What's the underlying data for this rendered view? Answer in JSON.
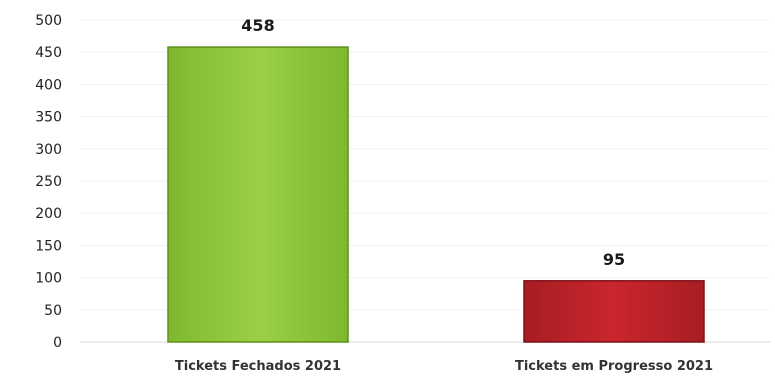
{
  "chart_data": {
    "type": "bar",
    "title": "",
    "xlabel": "",
    "ylabel": "",
    "categories": [
      "Tickets Fechados 2021",
      "Tickets em Progresso 2021"
    ],
    "values": [
      458,
      95
    ],
    "data_labels": [
      "458",
      "95"
    ],
    "bar_colors": [
      "#8dc63f",
      "#c0272d"
    ],
    "bar_edge_colors": [
      "#5e8f1c",
      "#7d1116"
    ],
    "ylim": [
      0,
      500
    ],
    "yticks": [
      0,
      50,
      100,
      150,
      200,
      250,
      300,
      350,
      400,
      450,
      500
    ],
    "ytick_labels": [
      "0",
      "50",
      "100",
      "150",
      "200",
      "250",
      "300",
      "350",
      "400",
      "450",
      "500"
    ],
    "grid": true,
    "legend": "none"
  }
}
